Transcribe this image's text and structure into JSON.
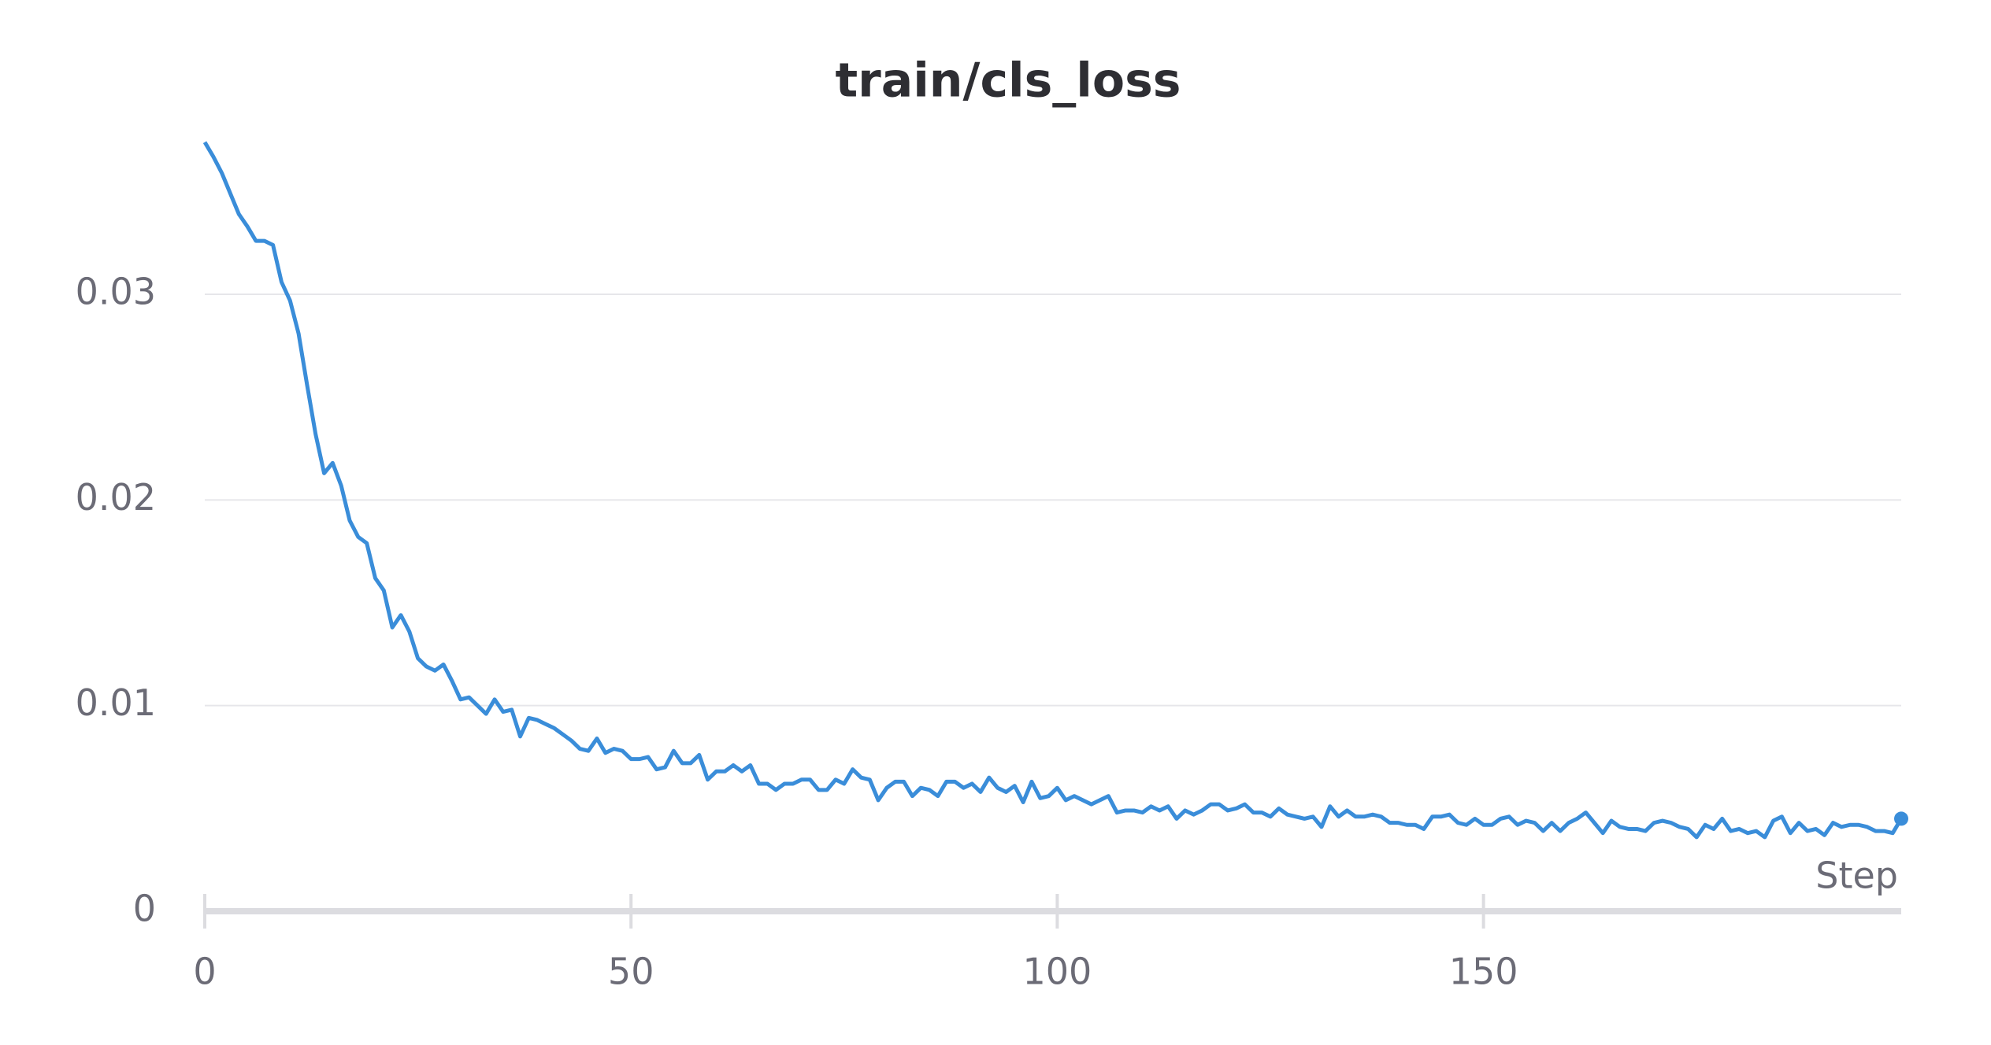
{
  "chart_data": {
    "type": "line",
    "title": "train/cls_loss",
    "x_label": "Step",
    "color": "#3a8dd9",
    "x": [
      0,
      1,
      2,
      3,
      4,
      5,
      6,
      7,
      8,
      9,
      10,
      11,
      12,
      13,
      14,
      15,
      16,
      17,
      18,
      19,
      20,
      21,
      22,
      23,
      24,
      25,
      26,
      27,
      28,
      29,
      30,
      31,
      32,
      33,
      34,
      35,
      36,
      37,
      38,
      39,
      40,
      41,
      42,
      43,
      44,
      45,
      46,
      47,
      48,
      49,
      50,
      51,
      52,
      53,
      54,
      55,
      56,
      57,
      58,
      59,
      60,
      61,
      62,
      63,
      64,
      65,
      66,
      67,
      68,
      69,
      70,
      71,
      72,
      73,
      74,
      75,
      76,
      77,
      78,
      79,
      80,
      81,
      82,
      83,
      84,
      85,
      86,
      87,
      88,
      89,
      90,
      91,
      92,
      93,
      94,
      95,
      96,
      97,
      98,
      99,
      100,
      101,
      102,
      103,
      104,
      105,
      106,
      107,
      108,
      109,
      110,
      111,
      112,
      113,
      114,
      115,
      116,
      117,
      118,
      119,
      120,
      121,
      122,
      123,
      124,
      125,
      126,
      127,
      128,
      129,
      130,
      131,
      132,
      133,
      134,
      135,
      136,
      137,
      138,
      139,
      140,
      141,
      142,
      143,
      144,
      145,
      146,
      147,
      148,
      149,
      150,
      151,
      152,
      153,
      154,
      155,
      156,
      157,
      158,
      159,
      160,
      161,
      162,
      163,
      164,
      165,
      166,
      167,
      168,
      169,
      170,
      171,
      172,
      173,
      174,
      175,
      176,
      177,
      178,
      179,
      180,
      181,
      182,
      183,
      184,
      185,
      186,
      187,
      188,
      189,
      190,
      191,
      192,
      193,
      194,
      195,
      196,
      197,
      198,
      199
    ],
    "values": [
      0.0374,
      0.0367,
      0.0359,
      0.0349,
      0.0339,
      0.0333,
      0.0326,
      0.0326,
      0.0324,
      0.0306,
      0.0297,
      0.0281,
      0.0256,
      0.0232,
      0.0213,
      0.0218,
      0.0207,
      0.019,
      0.0182,
      0.0179,
      0.0162,
      0.0156,
      0.0138,
      0.0144,
      0.0136,
      0.0123,
      0.0119,
      0.0117,
      0.012,
      0.0112,
      0.0103,
      0.0104,
      0.01,
      0.0096,
      0.0103,
      0.0097,
      0.0098,
      0.0085,
      0.0094,
      0.0093,
      0.0091,
      0.0089,
      0.0086,
      0.0083,
      0.0079,
      0.0078,
      0.0084,
      0.0077,
      0.0079,
      0.0078,
      0.0074,
      0.0074,
      0.0075,
      0.0069,
      0.007,
      0.0078,
      0.0072,
      0.0072,
      0.0076,
      0.0064,
      0.0068,
      0.0068,
      0.0071,
      0.0068,
      0.0071,
      0.0062,
      0.0062,
      0.0059,
      0.0062,
      0.0062,
      0.0064,
      0.0064,
      0.0059,
      0.0059,
      0.0064,
      0.0062,
      0.0069,
      0.0065,
      0.0064,
      0.0054,
      0.006,
      0.0063,
      0.0063,
      0.0056,
      0.006,
      0.0059,
      0.0056,
      0.0063,
      0.0063,
      0.006,
      0.0062,
      0.0058,
      0.0065,
      0.006,
      0.0058,
      0.0061,
      0.0053,
      0.0063,
      0.0055,
      0.0056,
      0.006,
      0.0054,
      0.0056,
      0.0054,
      0.0052,
      0.0054,
      0.0056,
      0.0048,
      0.0049,
      0.0049,
      0.0048,
      0.0051,
      0.0049,
      0.0051,
      0.0045,
      0.0049,
      0.0047,
      0.0049,
      0.0052,
      0.0052,
      0.0049,
      0.005,
      0.0052,
      0.0048,
      0.0048,
      0.0046,
      0.005,
      0.0047,
      0.0046,
      0.0045,
      0.0046,
      0.0041,
      0.0051,
      0.0046,
      0.0049,
      0.0046,
      0.0046,
      0.0047,
      0.0046,
      0.0043,
      0.0043,
      0.0042,
      0.0042,
      0.004,
      0.0046,
      0.0046,
      0.0047,
      0.0043,
      0.0042,
      0.0045,
      0.0042,
      0.0042,
      0.0045,
      0.0046,
      0.0042,
      0.0044,
      0.0043,
      0.0039,
      0.0043,
      0.0039,
      0.0043,
      0.0045,
      0.0048,
      0.0043,
      0.0038,
      0.0044,
      0.0041,
      0.004,
      0.004,
      0.0039,
      0.0043,
      0.0044,
      0.0043,
      0.0041,
      0.004,
      0.0036,
      0.0042,
      0.004,
      0.0045,
      0.0039,
      0.004,
      0.0038,
      0.0039,
      0.0036,
      0.0044,
      0.0046,
      0.0038,
      0.0043,
      0.0039,
      0.004,
      0.0037,
      0.0043,
      0.0041,
      0.0042,
      0.0042,
      0.0041,
      0.0039,
      0.0039,
      0.0038,
      0.0045
    ],
    "xlim": [
      0,
      199
    ],
    "ylim": [
      0,
      0.038
    ],
    "xticks": [
      0,
      50,
      100,
      150
    ],
    "yticks": [
      0,
      0.01,
      0.02,
      0.03
    ],
    "grid": true
  }
}
